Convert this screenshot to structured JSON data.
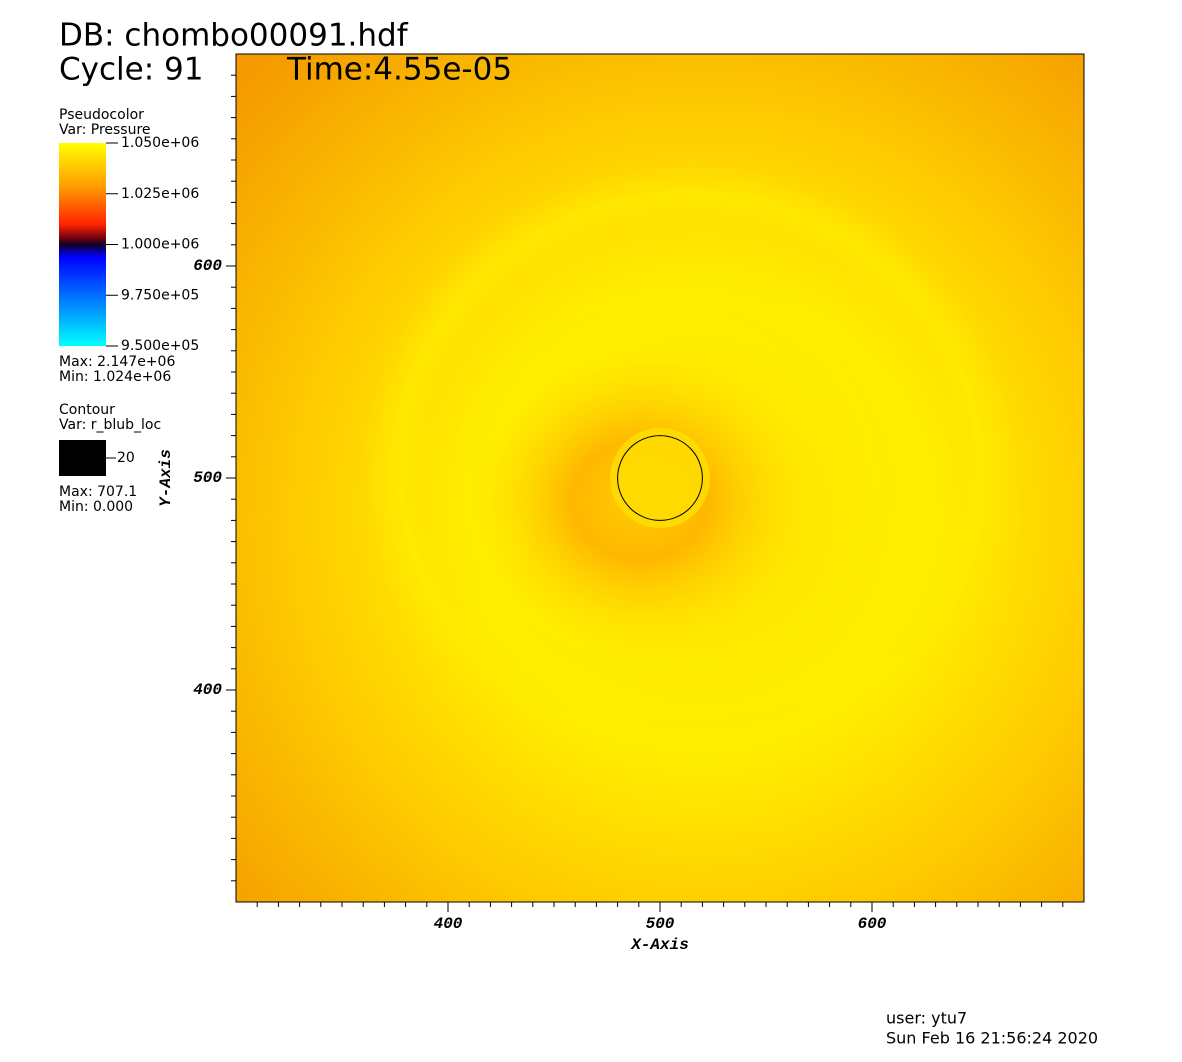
{
  "chart_data": {
    "type": "pseudocolor",
    "title": "DB: chombo00091.hdf",
    "cycle": "Cycle: 91",
    "time": "Time:4.55e-05",
    "xlabel": "X-Axis",
    "ylabel": "Y-Axis",
    "xlim": [
      300,
      700
    ],
    "ylim": [
      300,
      700
    ],
    "xticks": [
      400,
      500,
      600
    ],
    "yticks": [
      400,
      500,
      600
    ],
    "minor_step": 10,
    "pseudocolor": {
      "name": "Pseudocolor",
      "var": "Var: Pressure",
      "range": [
        950000,
        1050000
      ],
      "ticks": [
        {
          "value": 1050000,
          "label": "1.050e+06"
        },
        {
          "value": 1025000,
          "label": "1.025e+06"
        },
        {
          "value": 1000000,
          "label": "1.000e+06"
        },
        {
          "value": 975000,
          "label": "9.750e+05"
        },
        {
          "value": 950000,
          "label": "9.500e+05"
        }
      ],
      "max": "Max: 2.147e+06",
      "min": "Min:  1.024e+06"
    },
    "contour": {
      "name": "Contour",
      "var": "Var: r_blub_loc",
      "levels": [
        20
      ],
      "color": "#000000",
      "max": "Max: 707.1",
      "min": "Min: 0.000"
    },
    "user": "user: ytu7",
    "date": "Sun Feb 16 21:56:24 2020"
  }
}
